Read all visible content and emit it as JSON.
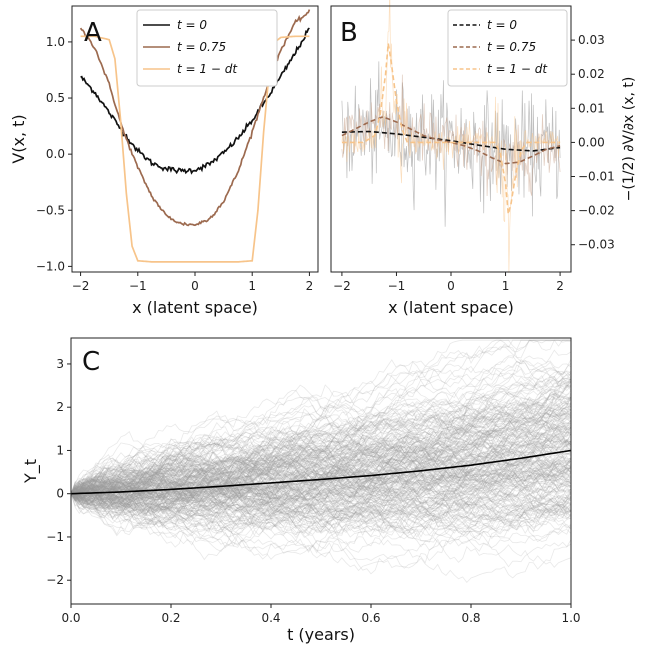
{
  "chart_data": [
    {
      "panel": "A",
      "type": "line",
      "xlabel": "x (latent space)",
      "ylabel": "V(x, t)",
      "xlim": [
        -2.15,
        2.15
      ],
      "ylim": [
        -1.05,
        1.32
      ],
      "xticks": [
        "−2",
        "−1",
        "0",
        "1",
        "2"
      ],
      "xtick_values": [
        -2,
        -1,
        0,
        1,
        2
      ],
      "yticks": [
        "−1.0",
        "−0.5",
        "0.0",
        "0.5",
        "1.0"
      ],
      "ytick_values": [
        -1.0,
        -0.5,
        0.0,
        0.5,
        1.0
      ],
      "legend_position": "top-right",
      "series": [
        {
          "name": "t = 0",
          "color": "#111111",
          "style": "solid",
          "x": [
            -2.0,
            -1.75,
            -1.5,
            -1.25,
            -1.0,
            -0.75,
            -0.5,
            -0.25,
            0.0,
            0.25,
            0.5,
            0.75,
            1.0,
            1.25,
            1.5,
            1.75,
            2.0
          ],
          "y": [
            0.69,
            0.55,
            0.37,
            0.19,
            0.03,
            -0.08,
            -0.13,
            -0.15,
            -0.14,
            -0.09,
            0.01,
            0.14,
            0.3,
            0.49,
            0.69,
            0.9,
            1.12
          ]
        },
        {
          "name": "t = 0.75",
          "color": "#9c6a4f",
          "style": "solid",
          "x": [
            -2.0,
            -1.75,
            -1.5,
            -1.25,
            -1.0,
            -0.75,
            -0.5,
            -0.25,
            0.0,
            0.25,
            0.5,
            0.75,
            1.0,
            1.25,
            1.5,
            1.75,
            2.0
          ],
          "y": [
            1.12,
            0.95,
            0.62,
            0.2,
            -0.12,
            -0.38,
            -0.55,
            -0.62,
            -0.63,
            -0.58,
            -0.42,
            -0.16,
            0.2,
            0.58,
            0.93,
            1.17,
            1.27
          ]
        },
        {
          "name": "t = 1 − dt",
          "color": "#f7c48a",
          "style": "solid",
          "x": [
            -2.0,
            -1.75,
            -1.5,
            -1.4,
            -1.3,
            -1.2,
            -1.1,
            -1.0,
            -0.75,
            -0.5,
            0.0,
            0.5,
            0.75,
            1.0,
            1.1,
            1.2,
            1.3,
            1.4,
            1.5,
            1.75,
            2.0
          ],
          "y": [
            1.05,
            1.05,
            1.02,
            0.85,
            0.3,
            -0.35,
            -0.82,
            -0.95,
            -0.96,
            -0.96,
            -0.96,
            -0.96,
            -0.96,
            -0.95,
            -0.5,
            0.2,
            0.75,
            1.0,
            1.04,
            1.05,
            1.05
          ]
        }
      ]
    },
    {
      "panel": "B",
      "type": "line",
      "xlabel": "x (latent space)",
      "ylabel": "−(1/2) ∂V/∂x (x, t)",
      "xlim": [
        -2.2,
        2.2
      ],
      "ylim": [
        -0.038,
        0.04
      ],
      "xticks": [
        "−2",
        "−1",
        "0",
        "1",
        "2"
      ],
      "xtick_values": [
        -2,
        -1,
        0,
        1,
        2
      ],
      "yticks": [
        "0.03",
        "0.02",
        "0.01",
        "0.00",
        "−0.01",
        "−0.02",
        "−0.03"
      ],
      "ytick_values": [
        0.03,
        0.02,
        0.01,
        0.0,
        -0.01,
        -0.02,
        -0.03
      ],
      "legend_position": "top-right",
      "series": [
        {
          "name": "t = 0",
          "color": "#111111",
          "style": "dashed",
          "x": [
            -2.0,
            -1.5,
            -1.0,
            -0.5,
            0.0,
            0.5,
            1.0,
            1.5,
            2.0
          ],
          "y": [
            0.003,
            0.0032,
            0.0025,
            0.0015,
            0.0005,
            -0.0008,
            -0.002,
            -0.0025,
            -0.0015
          ]
        },
        {
          "name": "t = 0.75",
          "color": "#9c6a4f",
          "style": "dashed",
          "x": [
            -2.0,
            -1.75,
            -1.5,
            -1.25,
            -1.0,
            -0.75,
            -0.5,
            -0.25,
            0.0,
            0.25,
            0.5,
            0.75,
            1.0,
            1.25,
            1.5,
            1.75,
            2.0
          ],
          "y": [
            0.002,
            0.004,
            0.006,
            0.0075,
            0.006,
            0.004,
            0.002,
            0.0008,
            0.0,
            -0.001,
            -0.0025,
            -0.0045,
            -0.0062,
            -0.0058,
            -0.004,
            -0.002,
            -0.001
          ]
        },
        {
          "name": "t = 1 − dt",
          "color": "#f7c48a",
          "style": "dashed",
          "x": [
            -2.0,
            -1.6,
            -1.4,
            -1.3,
            -1.2,
            -1.15,
            -1.1,
            -1.0,
            -0.9,
            -0.8,
            -0.5,
            0.0,
            0.5,
            0.8,
            0.9,
            1.0,
            1.05,
            1.1,
            1.2,
            1.3,
            1.4,
            1.6,
            2.0
          ],
          "y": [
            0.0,
            0.0,
            0.002,
            0.008,
            0.02,
            0.029,
            0.024,
            0.012,
            0.004,
            0.0,
            0.0,
            0.0,
            0.0,
            0.0,
            -0.003,
            -0.012,
            -0.021,
            -0.018,
            -0.008,
            -0.002,
            0.0,
            0.0,
            0.0
          ]
        }
      ]
    },
    {
      "panel": "C",
      "type": "line",
      "xlabel": "t (years)",
      "ylabel": "Y_t",
      "xlim": [
        0.0,
        1.0
      ],
      "ylim": [
        -2.55,
        3.6
      ],
      "xticks": [
        "0.0",
        "0.2",
        "0.4",
        "0.6",
        "0.8",
        "1.0"
      ],
      "xtick_values": [
        0.0,
        0.2,
        0.4,
        0.6,
        0.8,
        1.0
      ],
      "yticks": [
        "3",
        "2",
        "1",
        "0",
        "−1",
        "−2"
      ],
      "ytick_values": [
        3,
        2,
        1,
        0,
        -1,
        -2
      ],
      "series": [
        {
          "color": "#000000",
          "style": "solid",
          "x": [
            0.0,
            0.1,
            0.2,
            0.3,
            0.4,
            0.5,
            0.6,
            0.7,
            0.8,
            0.9,
            1.0
          ],
          "y": [
            0.0,
            0.04,
            0.1,
            0.17,
            0.25,
            0.33,
            0.42,
            0.53,
            0.66,
            0.82,
            1.0
          ]
        }
      ],
      "sample_paths": {
        "count": 250,
        "color": "#9a9a9a",
        "start": 0.0,
        "spread_at_t1": [
          -2.3,
          3.4
        ]
      }
    }
  ],
  "panels": {
    "A": {
      "letter": "A",
      "legend": [
        "t = 0",
        "t = 0.75",
        "t = 1 − dt"
      ]
    },
    "B": {
      "letter": "B",
      "legend": [
        "t = 0",
        "t = 0.75",
        "t = 1 − dt"
      ]
    },
    "C": {
      "letter": "C"
    }
  },
  "colors": {
    "t0": "#111111",
    "t075": "#9c6a4f",
    "t1": "#f7c48a",
    "paths": "#9a9a9a"
  }
}
